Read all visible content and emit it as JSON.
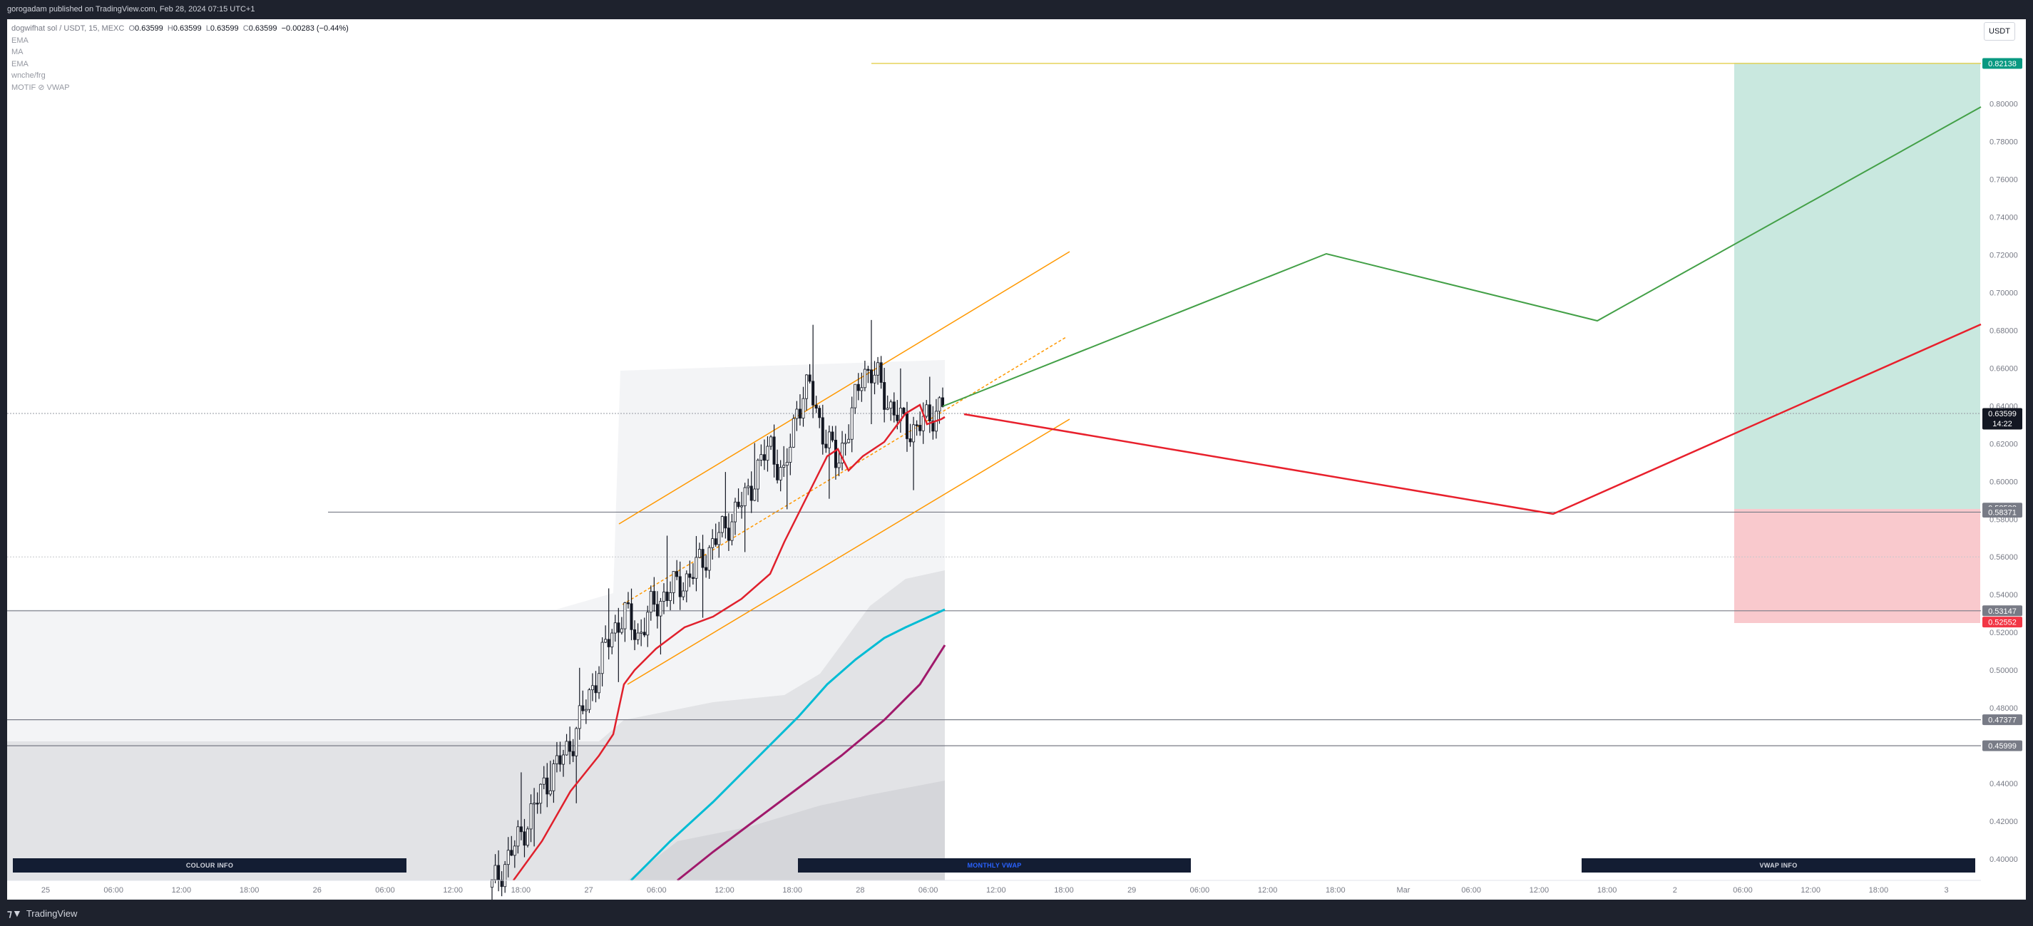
{
  "header": {
    "published": "gorogadam published on TradingView.com, Feb 28, 2024 07:15 UTC+1"
  },
  "legend": {
    "symbol": "dogwifhat sol / USDT, 15, MEXC",
    "open_label": "O",
    "open": "0.63599",
    "high_label": "H",
    "high": "0.63599",
    "low_label": "L",
    "low": "0.63599",
    "close_label": "C",
    "close": "0.63599",
    "change": "−0.00283 (−0.44%)",
    "indicators": [
      "EMA",
      "MA",
      "EMA",
      "wnche/frg",
      "MOTIF ⊘ VWAP"
    ]
  },
  "currency": "USDT",
  "buttons": {
    "colour_info": "COLOUR INFO",
    "monthly_vwap": "MONTHLY VWAP",
    "vwap_info": "VWAP INFO"
  },
  "footer": {
    "brand": "TradingView"
  },
  "colors": {
    "current_price_bg": "#131722",
    "target_bg": "#089981",
    "stop_bg": "#f23645",
    "level_bg": "#787b86",
    "ema_red": "#e0202c",
    "vwap_cyan": "#00bcd4",
    "vwap_purple": "#a0196b",
    "channel_orange": "#ff9800",
    "bull_path": "#43a047",
    "bear_path": "#e8202c"
  },
  "chart_data": {
    "type": "candlestick",
    "symbol": "dogwifhat sol / USDT",
    "interval": "15",
    "exchange": "MEXC",
    "ylim": [
      0.386,
      0.831
    ],
    "y_ticks": [
      "0.40000",
      "0.42000",
      "0.44000",
      "0.46000",
      "0.48000",
      "0.50000",
      "0.52000",
      "0.54000",
      "0.56000",
      "0.58000",
      "0.60000",
      "0.62000",
      "0.64000",
      "0.66000",
      "0.68000",
      "0.70000",
      "0.72000",
      "0.74000",
      "0.76000",
      "0.78000",
      "0.80000"
    ],
    "x_ticks": [
      "25",
      "06:00",
      "12:00",
      "18:00",
      "26",
      "06:00",
      "12:00",
      "18:00",
      "27",
      "06:00",
      "12:00",
      "18:00",
      "28",
      "06:00",
      "12:00",
      "18:00",
      "29",
      "06:00",
      "12:00",
      "18:00",
      "Mar",
      "06:00",
      "12:00",
      "18:00",
      "2",
      "06:00",
      "12:00",
      "18:00",
      "3"
    ],
    "price_labels": [
      {
        "value": 0.82138,
        "text": "0.82138",
        "kind": "target"
      },
      {
        "value": 0.63599,
        "text": "0.63599",
        "sub": "14:22",
        "kind": "current"
      },
      {
        "value": 0.58588,
        "text": "0.58588",
        "kind": "level"
      },
      {
        "value": 0.58371,
        "text": "0.58371",
        "kind": "level"
      },
      {
        "value": 0.53147,
        "text": "0.53147",
        "kind": "level"
      },
      {
        "value": 0.52552,
        "text": "0.52552",
        "kind": "stop"
      },
      {
        "value": 0.47377,
        "text": "0.47377",
        "kind": "level"
      },
      {
        "value": 0.45999,
        "text": "0.45999",
        "kind": "level"
      }
    ],
    "candles_close_trend": [
      0.385,
      0.398,
      0.41,
      0.425,
      0.44,
      0.45,
      0.462,
      0.48,
      0.5,
      0.52,
      0.53,
      0.518,
      0.532,
      0.54,
      0.545,
      0.55,
      0.56,
      0.57,
      0.58,
      0.59,
      0.605,
      0.62,
      0.6,
      0.64,
      0.65,
      0.625,
      0.61,
      0.63,
      0.66,
      0.655,
      0.64,
      0.63,
      0.627,
      0.635,
      0.64
    ]
  }
}
